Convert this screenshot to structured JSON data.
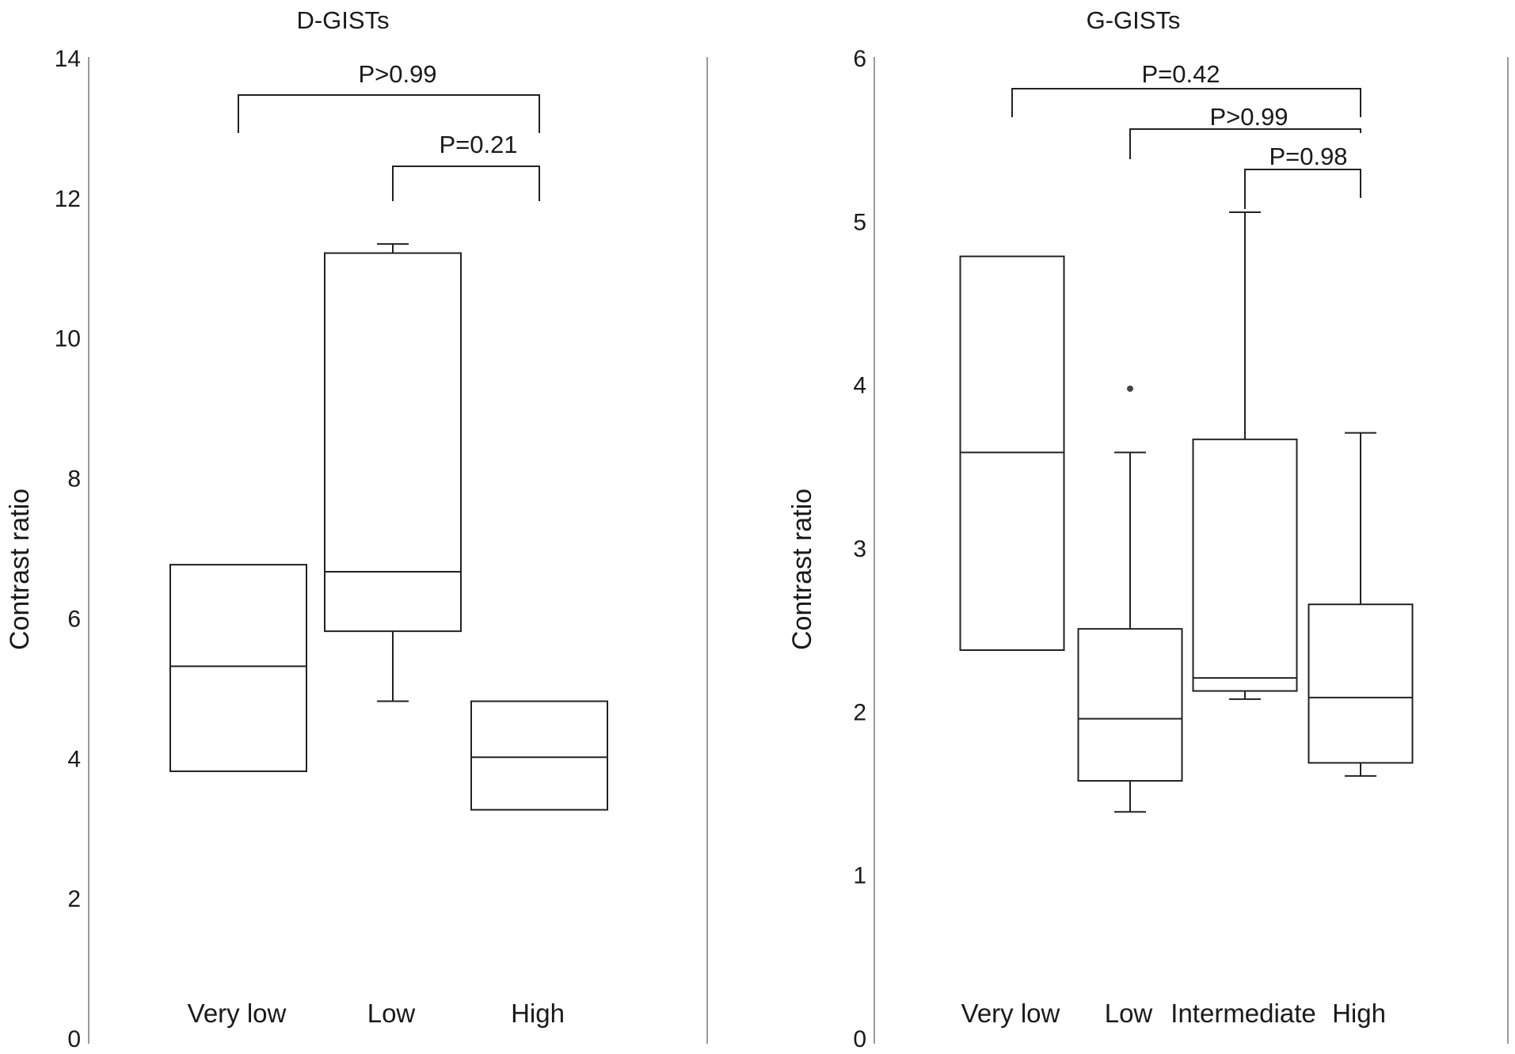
{
  "chart_data": [
    {
      "type": "box",
      "title": "D-GISTs",
      "ylabel": "Contrast ratio",
      "ylim": [
        0,
        14
      ],
      "yticks": [
        "0",
        "2",
        "4",
        "6",
        "8",
        "10",
        "12",
        "14"
      ],
      "categories": [
        "Very low",
        "Low",
        "High"
      ],
      "boxes": [
        {
          "category": "Very low",
          "q1": 3.8,
          "median": 5.3,
          "q3": 6.75
        },
        {
          "category": "Low",
          "whisker_low": 4.8,
          "q1": 5.8,
          "median": 6.65,
          "q3": 11.2,
          "whisker_high": 11.33
        },
        {
          "category": "High",
          "q1": 3.25,
          "median": 4.0,
          "q3": 4.8
        }
      ],
      "comparisons": [
        {
          "from": "Very low",
          "to": "High",
          "label": "P>0.99"
        },
        {
          "from": "Low",
          "to": "High",
          "label": "P=0.21"
        }
      ]
    },
    {
      "type": "box",
      "title": "G-GISTs",
      "ylabel": "Contrast ratio",
      "ylim": [
        0,
        6
      ],
      "yticks": [
        "0",
        "1",
        "2",
        "3",
        "4",
        "5",
        "6"
      ],
      "categories": [
        "Very low",
        "Low",
        "Intermediate",
        "High"
      ],
      "boxes": [
        {
          "category": "Very low",
          "q1": 2.37,
          "median": 3.58,
          "q3": 4.78
        },
        {
          "category": "Low",
          "whisker_low": 1.38,
          "q1": 1.57,
          "median": 1.95,
          "q3": 2.5,
          "whisker_high": 3.58,
          "outliers": [
            3.97
          ]
        },
        {
          "category": "Intermediate",
          "whisker_low": 2.07,
          "q1": 2.12,
          "median": 2.2,
          "q3": 3.66,
          "whisker_high": 5.05
        },
        {
          "category": "High",
          "whisker_low": 1.6,
          "q1": 1.68,
          "median": 2.08,
          "q3": 2.65,
          "whisker_high": 3.7
        }
      ],
      "comparisons": [
        {
          "from": "Very low",
          "to": "High",
          "label": "P=0.42"
        },
        {
          "from": "Low",
          "to": "High",
          "label": "P>0.99"
        },
        {
          "from": "Intermediate",
          "to": "High",
          "label": "P=0.98"
        }
      ]
    }
  ]
}
